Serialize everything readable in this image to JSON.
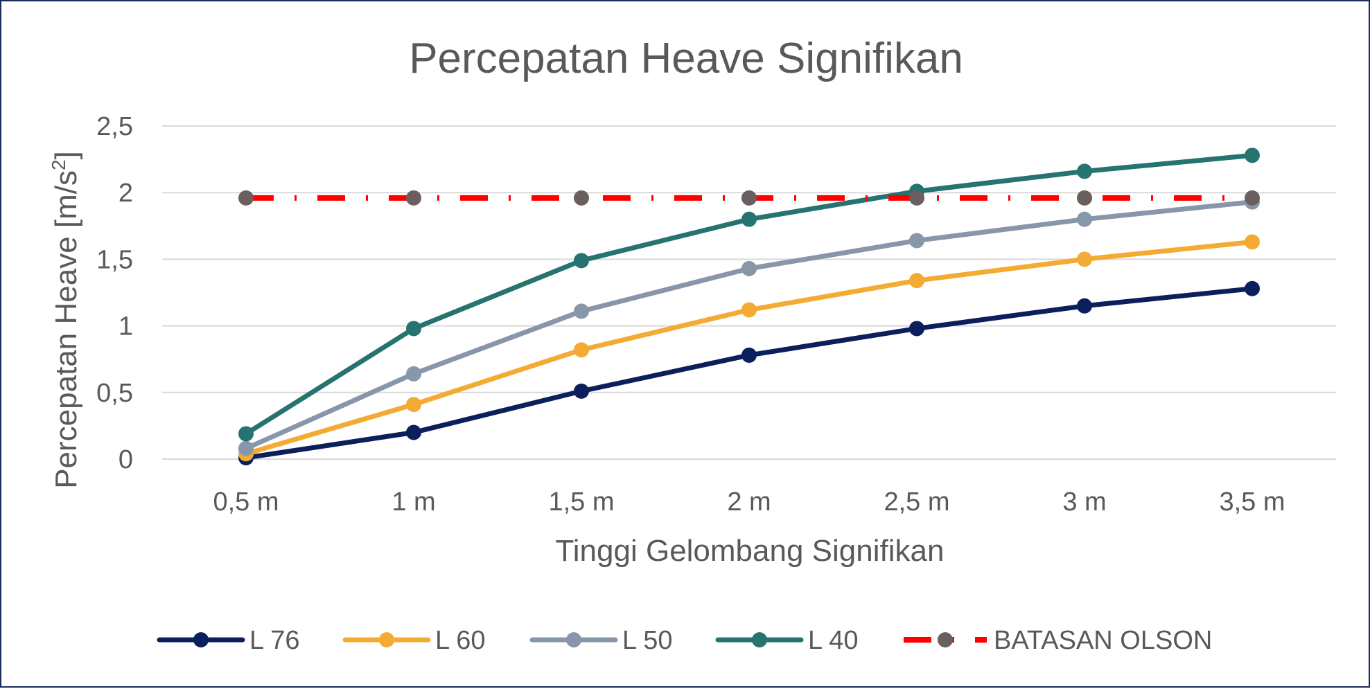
{
  "chart_data": {
    "type": "line",
    "title": "Percepatan Heave Signifikan",
    "xlabel": "Tinggi Gelombang Signifikan",
    "ylabel": "Percepatan Heave [m/s",
    "ylabel_sup": "2",
    "ylabel_end": "]",
    "categories": [
      "0,5 m",
      "1 m",
      "1,5 m",
      "2 m",
      "2,5 m",
      "3 m",
      "3,5 m"
    ],
    "ylim": [
      0,
      2.5
    ],
    "yticks": [
      0,
      0.5,
      1,
      1.5,
      2,
      2.5
    ],
    "ytick_labels": [
      "0",
      "0,5",
      "1",
      "1,5",
      "2",
      "2,5"
    ],
    "grid": true,
    "legend_position": "bottom",
    "series": [
      {
        "name": "L 76",
        "color": "#0b1f5c",
        "style": "solid",
        "marker_color": "#0b1f5c",
        "values": [
          0.01,
          0.2,
          0.51,
          0.78,
          0.98,
          1.15,
          1.28
        ]
      },
      {
        "name": "L 60",
        "color": "#f4ab33",
        "style": "solid",
        "marker_color": "#f4ab33",
        "values": [
          0.04,
          0.41,
          0.82,
          1.12,
          1.34,
          1.5,
          1.63
        ]
      },
      {
        "name": "L 50",
        "color": "#8796a8",
        "style": "solid",
        "marker_color": "#8796a8",
        "values": [
          0.08,
          0.64,
          1.11,
          1.43,
          1.64,
          1.8,
          1.93
        ]
      },
      {
        "name": "L 40",
        "color": "#267370",
        "style": "solid",
        "marker_color": "#267370",
        "values": [
          0.19,
          0.98,
          1.49,
          1.8,
          2.01,
          2.16,
          2.28
        ]
      },
      {
        "name": "BATASAN OLSON",
        "color": "#ff0000",
        "style": "dashdot",
        "marker_color": "#6b5e5e",
        "values": [
          1.96,
          1.96,
          1.96,
          1.96,
          1.96,
          1.96,
          1.96
        ]
      }
    ]
  }
}
